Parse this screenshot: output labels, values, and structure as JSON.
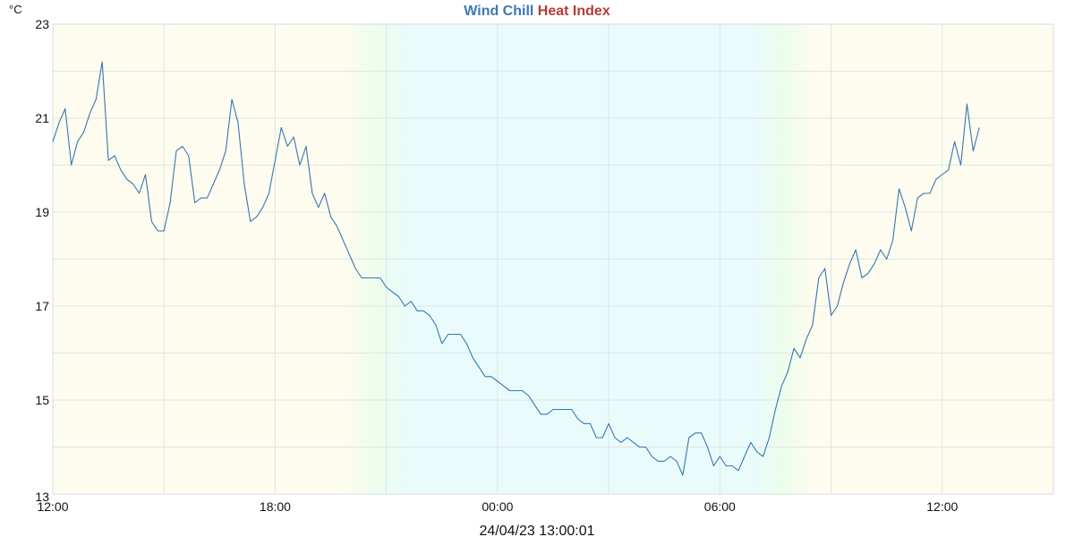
{
  "chart_data": {
    "type": "line",
    "title_parts": [
      {
        "text": "Wind Chill",
        "color": "#3c78b4"
      },
      {
        "text": "Heat Index",
        "color": "#b43c3c"
      }
    ],
    "unit": "°C",
    "timestamp": "24/04/23 13:00:01",
    "ylim": [
      13,
      23
    ],
    "yticks": [
      13,
      15,
      17,
      19,
      21,
      23
    ],
    "x_range_hours": [
      0,
      27
    ],
    "xticks": [
      {
        "h": 0,
        "label": "12:00"
      },
      {
        "h": 6,
        "label": "18:00"
      },
      {
        "h": 12,
        "label": "00:00"
      },
      {
        "h": 18,
        "label": "06:00"
      },
      {
        "h": 24,
        "label": "12:00"
      }
    ],
    "grid": true,
    "line_color": "#3a75b0",
    "background_colors": {
      "day": "#fdfcef",
      "night": "#e9fbfb",
      "transition": "#ecfdec"
    },
    "series": [
      {
        "values": [
          20.5,
          20.9,
          21.2,
          20.0,
          20.5,
          20.7,
          21.1,
          21.4,
          22.2,
          20.1,
          20.2,
          19.9,
          19.7,
          19.6,
          19.4,
          19.8,
          18.8,
          18.6,
          18.6,
          19.2,
          20.3,
          20.4,
          20.2,
          19.2,
          19.3,
          19.3,
          19.6,
          19.9,
          20.3,
          21.4,
          20.9,
          19.6,
          18.8,
          18.9,
          19.1,
          19.4,
          20.1,
          20.8,
          20.4,
          20.6,
          20.0,
          20.4,
          19.4,
          19.1,
          19.4,
          18.9,
          18.7,
          18.4,
          18.1,
          17.8,
          17.6,
          17.6,
          17.6,
          17.6,
          17.4,
          17.3,
          17.2,
          17.0,
          17.1,
          16.9,
          16.9,
          16.8,
          16.6,
          16.2,
          16.4,
          16.4,
          16.4,
          16.2,
          15.9,
          15.7,
          15.5,
          15.5,
          15.4,
          15.3,
          15.2,
          15.2,
          15.2,
          15.1,
          14.9,
          14.7,
          14.7,
          14.8,
          14.8,
          14.8,
          14.8,
          14.6,
          14.5,
          14.5,
          14.2,
          14.2,
          14.5,
          14.2,
          14.1,
          14.2,
          14.1,
          14.0,
          14.0,
          13.8,
          13.7,
          13.7,
          13.8,
          13.7,
          13.4,
          14.2,
          14.3,
          14.3,
          14.0,
          13.6,
          13.8,
          13.6,
          13.6,
          13.5,
          13.8,
          14.1,
          13.9,
          13.8,
          14.2,
          14.8,
          15.3,
          15.6,
          16.1,
          15.9,
          16.3,
          16.6,
          17.6,
          17.8,
          16.8,
          17.0,
          17.5,
          17.9,
          18.2,
          17.6,
          17.7,
          17.9,
          18.2,
          18.0,
          18.4,
          19.5,
          19.1,
          18.6,
          19.3,
          19.4,
          19.4,
          19.7,
          19.8,
          19.9,
          20.5,
          20.0,
          21.3,
          20.3,
          20.8
        ]
      }
    ]
  }
}
